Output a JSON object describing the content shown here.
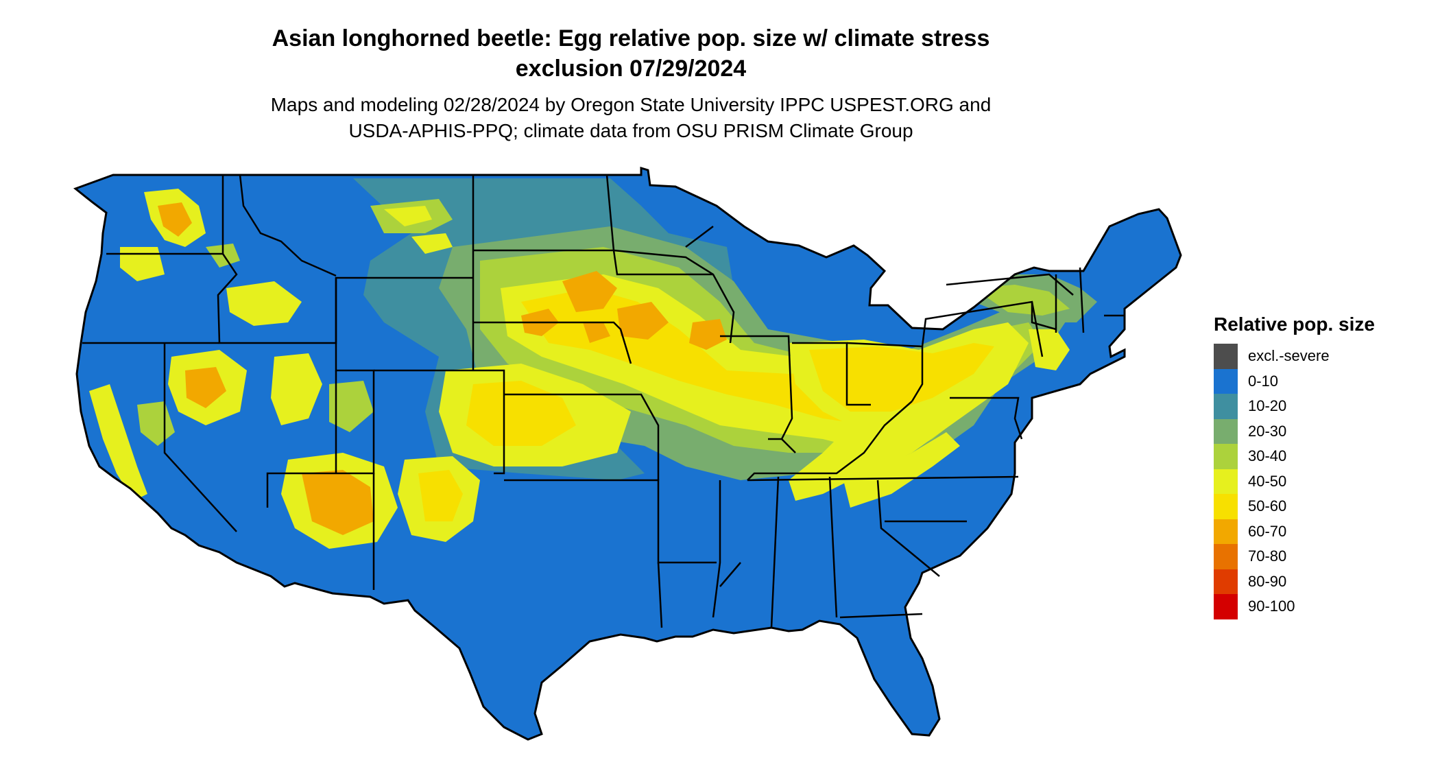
{
  "title_line1": "Asian longhorned beetle: Egg relative pop. size w/ climate stress",
  "title_line2": "exclusion 07/29/2024",
  "subtitle_line1": "Maps and modeling 02/28/2024 by Oregon State University IPPC USPEST.ORG and",
  "subtitle_line2": "USDA-APHIS-PPQ; climate data from OSU PRISM Climate Group",
  "legend": {
    "title": "Relative pop. size",
    "items": [
      {
        "label": "excl.-severe",
        "color": "#4d4d4d"
      },
      {
        "label": "0-10",
        "color": "#1a73d0"
      },
      {
        "label": "10-20",
        "color": "#3f8fa0"
      },
      {
        "label": "20-30",
        "color": "#78ad6e"
      },
      {
        "label": "30-40",
        "color": "#acd23c"
      },
      {
        "label": "40-50",
        "color": "#e6f01e"
      },
      {
        "label": "50-60",
        "color": "#f7e000"
      },
      {
        "label": "60-70",
        "color": "#f2a800"
      },
      {
        "label": "70-80",
        "color": "#e87200"
      },
      {
        "label": "80-90",
        "color": "#e03c00"
      },
      {
        "label": "90-100",
        "color": "#d40000"
      }
    ]
  },
  "colors": {
    "base": "#1a73d0",
    "c10_20": "#3f8fa0",
    "c20_30": "#78ad6e",
    "c30_40": "#acd23c",
    "c40_50": "#e6f01e",
    "c50_60": "#f7e000",
    "c60_70": "#f2a800",
    "border": "#000000"
  }
}
